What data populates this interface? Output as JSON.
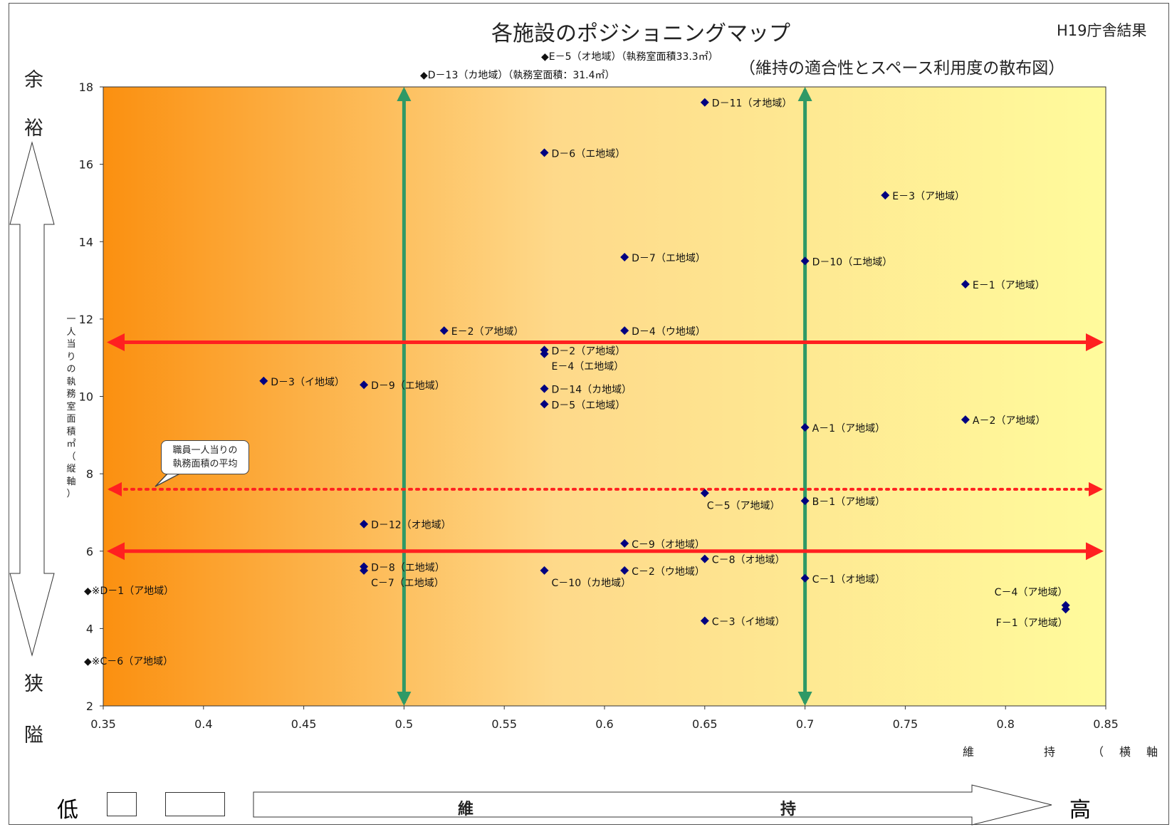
{
  "header": {
    "title": "各施設のポジショニングマップ",
    "top_right": "H19庁舎結果",
    "subtitle": "（維持の適合性とスペース利用度の散布図）"
  },
  "side": {
    "top_chars": [
      "余",
      "裕"
    ],
    "bottom_chars": [
      "狭",
      "隘"
    ]
  },
  "bottom": {
    "low": "低",
    "high": "高",
    "arrow_chars": [
      "維",
      "持"
    ]
  },
  "callout": {
    "text_line1": "職員一人当りの",
    "text_line2": "執務面積の平均"
  },
  "colors": {
    "gradient_left": "#fb9010",
    "gradient_mid": "#fed98a",
    "gradient_right": "#fffb9c",
    "marker": "#000080",
    "red_line": "#ff2020",
    "green_line": "#2f9966"
  },
  "chart_data": {
    "type": "scatter",
    "title": "各施設のポジショニングマップ",
    "xlabel": "維　　持　（横軸）",
    "ylabel": "一人当りの執務室面積㎡（縦軸）",
    "xlim": [
      0.35,
      0.85
    ],
    "ylim": [
      2,
      18
    ],
    "x_ticks": [
      "0.35",
      "0.4",
      "0.45",
      "0.5",
      "0.55",
      "0.6",
      "0.65",
      "0.7",
      "0.75",
      "0.8",
      "0.85"
    ],
    "y_ticks": [
      "2",
      "4",
      "6",
      "8",
      "10",
      "12",
      "14",
      "16",
      "18"
    ],
    "reference_lines": {
      "vertical_x": [
        0.5,
        0.7
      ],
      "horizontal_y": [
        11.4,
        6.0
      ],
      "average_y": 7.6
    },
    "points": [
      {
        "label": "D－11（オ地域）",
        "x": 0.65,
        "y": 17.6,
        "pos": "right"
      },
      {
        "label": "D－6（エ地域）",
        "x": 0.57,
        "y": 16.3,
        "pos": "right"
      },
      {
        "label": "E－3（ア地域）",
        "x": 0.74,
        "y": 15.2,
        "pos": "right"
      },
      {
        "label": "D－7（エ地域）",
        "x": 0.61,
        "y": 13.6,
        "pos": "right"
      },
      {
        "label": "D－10（エ地域）",
        "x": 0.7,
        "y": 13.5,
        "pos": "right"
      },
      {
        "label": "E－1（ア地域）",
        "x": 0.78,
        "y": 12.9,
        "pos": "right"
      },
      {
        "label": "E－2（ア地域）",
        "x": 0.52,
        "y": 11.7,
        "pos": "right"
      },
      {
        "label": "D－4（ウ地域）",
        "x": 0.61,
        "y": 11.7,
        "pos": "right"
      },
      {
        "label": "D－2（ア地域）",
        "x": 0.57,
        "y": 11.2,
        "pos": "right"
      },
      {
        "label": "E－4（エ地域）",
        "x": 0.57,
        "y": 11.1,
        "pos": "below"
      },
      {
        "label": "D－3（イ地域）",
        "x": 0.43,
        "y": 10.4,
        "pos": "right"
      },
      {
        "label": "D－9（エ地域）",
        "x": 0.48,
        "y": 10.3,
        "pos": "right"
      },
      {
        "label": "D－14（カ地域）",
        "x": 0.57,
        "y": 10.2,
        "pos": "right"
      },
      {
        "label": "D－5（エ地域）",
        "x": 0.57,
        "y": 9.8,
        "pos": "right"
      },
      {
        "label": "A－2（ア地域）",
        "x": 0.78,
        "y": 9.4,
        "pos": "right"
      },
      {
        "label": "A－1（ア地域）",
        "x": 0.7,
        "y": 9.2,
        "pos": "right"
      },
      {
        "label": "C－5（ア地域）",
        "x": 0.65,
        "y": 7.5,
        "pos": "below"
      },
      {
        "label": "B－1（ア地域）",
        "x": 0.7,
        "y": 7.3,
        "pos": "right"
      },
      {
        "label": "D－12（オ地域）",
        "x": 0.48,
        "y": 6.7,
        "pos": "right"
      },
      {
        "label": "C－9（オ地域）",
        "x": 0.61,
        "y": 6.2,
        "pos": "right"
      },
      {
        "label": "C－8（オ地域）",
        "x": 0.65,
        "y": 5.8,
        "pos": "right"
      },
      {
        "label": "D－8（エ地域）",
        "x": 0.48,
        "y": 5.6,
        "pos": "right"
      },
      {
        "label": "C－7（エ地域）",
        "x": 0.48,
        "y": 5.5,
        "pos": "below"
      },
      {
        "label": "C－10（カ地域）",
        "x": 0.57,
        "y": 5.5,
        "pos": "below"
      },
      {
        "label": "C－2（ウ地域）",
        "x": 0.61,
        "y": 5.5,
        "pos": "right"
      },
      {
        "label": "C－1（オ地域）",
        "x": 0.7,
        "y": 5.3,
        "pos": "right"
      },
      {
        "label": "C－4（ア地域）",
        "x": 0.83,
        "y": 4.6,
        "pos": "above"
      },
      {
        "label": "F－1（ア地域）",
        "x": 0.83,
        "y": 4.5,
        "pos": "below"
      },
      {
        "label": "C－3（イ地域）",
        "x": 0.65,
        "y": 4.2,
        "pos": "right"
      }
    ],
    "out_of_range_notes": [
      {
        "label": "◆E－5（オ地域）（執務室面積33.3㎡）",
        "x": 0.57,
        "y": 33.3
      },
      {
        "label": "◆D－13（カ地域）（執務室面積：31.4㎡）",
        "x": 0.5,
        "y": 31.4
      },
      {
        "label": "◆※D－1（ア地域）",
        "x": 0.35,
        "y": 5.0
      },
      {
        "label": "◆※C－6（ア地域）",
        "x": 0.35,
        "y": 3.2
      }
    ]
  }
}
